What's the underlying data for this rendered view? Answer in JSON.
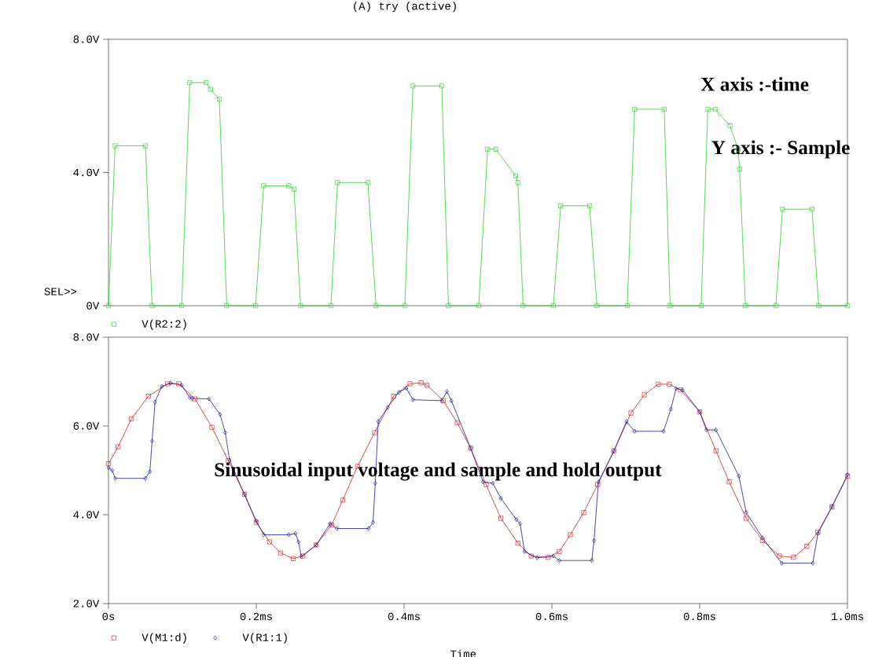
{
  "chart_data": [
    {
      "type": "line",
      "title": "(A) try (active)",
      "annotations": [
        "X axis :-time",
        "Y axis :- Sample",
        "SEL>>"
      ],
      "xlim": [
        0,
        1.0
      ],
      "ylim": [
        0,
        8
      ],
      "yticks": [
        {
          "value": 0,
          "label": "0V"
        },
        {
          "value": 4,
          "label": "4.0V"
        },
        {
          "value": 8,
          "label": "8.0V"
        }
      ],
      "tick_labels": "y",
      "legend": "bottom",
      "marker": "square",
      "series": [
        {
          "name": "V(R2:2)",
          "color": "#33cc33",
          "x": [
            0,
            0.009,
            0.05,
            0.059,
            0.099,
            0.11,
            0.132,
            0.138,
            0.15,
            0.16,
            0.199,
            0.21,
            0.244,
            0.251,
            0.26,
            0.301,
            0.31,
            0.351,
            0.362,
            0.401,
            0.412,
            0.451,
            0.46,
            0.501,
            0.513,
            0.524,
            0.551,
            0.554,
            0.561,
            0.602,
            0.612,
            0.651,
            0.661,
            0.702,
            0.712,
            0.752,
            0.76,
            0.802,
            0.811,
            0.821,
            0.841,
            0.852,
            0.854,
            0.862,
            0.903,
            0.912,
            0.952,
            0.961,
            1.0
          ],
          "values": [
            0,
            4.8,
            4.8,
            0,
            0,
            6.7,
            6.7,
            6.5,
            6.2,
            0,
            0,
            3.6,
            3.6,
            3.5,
            0,
            0,
            3.7,
            3.7,
            0,
            0,
            6.6,
            6.6,
            0,
            0,
            4.7,
            4.7,
            3.9,
            3.7,
            0,
            0,
            3.0,
            3.0,
            0,
            0,
            5.9,
            5.9,
            0,
            0,
            5.9,
            5.9,
            5.4,
            4.7,
            4.1,
            0,
            0,
            2.9,
            2.9,
            0,
            0
          ]
        }
      ]
    },
    {
      "type": "line",
      "xlabel": "Time",
      "annotations": [
        "Sinusoidal input voltage and sample and hold output"
      ],
      "xlim": [
        0,
        1.0
      ],
      "ylim": [
        2,
        8
      ],
      "xticks": [
        {
          "value": 0,
          "label": "0s"
        },
        {
          "value": 0.2,
          "label": "0.2ms"
        },
        {
          "value": 0.4,
          "label": "0.4ms"
        },
        {
          "value": 0.6,
          "label": "0.6ms"
        },
        {
          "value": 0.8,
          "label": "0.8ms"
        },
        {
          "value": 1.0,
          "label": "1.0ms"
        }
      ],
      "yticks": [
        {
          "value": 2,
          "label": "2.0V"
        },
        {
          "value": 4,
          "label": "4.0V"
        },
        {
          "value": 6,
          "label": "6.0V"
        },
        {
          "value": 8,
          "label": "8.0V"
        }
      ],
      "legend": "bottom",
      "marker": "square",
      "series": [
        {
          "name": "V(M1:d)",
          "color": "#cc2222",
          "x": [
            0,
            0.013,
            0.031,
            0.054,
            0.08,
            0.095,
            0.117,
            0.14,
            0.162,
            0.184,
            0.2,
            0.218,
            0.233,
            0.25,
            0.263,
            0.281,
            0.302,
            0.317,
            0.337,
            0.36,
            0.386,
            0.408,
            0.423,
            0.431,
            0.453,
            0.472,
            0.49,
            0.511,
            0.531,
            0.554,
            0.572,
            0.595,
            0.61,
            0.625,
            0.643,
            0.662,
            0.684,
            0.707,
            0.725,
            0.744,
            0.759,
            0.774,
            0.8,
            0.822,
            0.84,
            0.863,
            0.885,
            0.908,
            0.927,
            0.945,
            0.96,
            0.979,
            1.0
          ],
          "values": [
            5.15,
            5.53,
            6.16,
            6.67,
            6.95,
            6.95,
            6.61,
            5.97,
            5.22,
            4.46,
            3.83,
            3.39,
            3.14,
            3.01,
            3.07,
            3.32,
            3.77,
            4.33,
            5.09,
            5.85,
            6.67,
            6.95,
            6.97,
            6.92,
            6.57,
            6.07,
            5.5,
            4.68,
            3.92,
            3.36,
            3.07,
            3.04,
            3.17,
            3.55,
            4.05,
            4.68,
            5.44,
            6.29,
            6.7,
            6.94,
            6.94,
            6.81,
            6.32,
            5.44,
            4.74,
            3.92,
            3.42,
            3.07,
            3.04,
            3.29,
            3.61,
            4.18,
            4.87
          ]
        },
        {
          "name": "V(R1:1)",
          "color": "#1a1a99",
          "marker": "diamond",
          "x": [
            0,
            0.005,
            0.009,
            0.05,
            0.056,
            0.059,
            0.063,
            0.072,
            0.084,
            0.099,
            0.11,
            0.113,
            0.136,
            0.151,
            0.158,
            0.164,
            0.184,
            0.2,
            0.21,
            0.244,
            0.253,
            0.257,
            0.261,
            0.281,
            0.3,
            0.309,
            0.352,
            0.358,
            0.361,
            0.365,
            0.378,
            0.393,
            0.403,
            0.412,
            0.451,
            0.458,
            0.464,
            0.49,
            0.507,
            0.52,
            0.531,
            0.552,
            0.557,
            0.563,
            0.58,
            0.602,
            0.61,
            0.654,
            0.657,
            0.663,
            0.684,
            0.701,
            0.712,
            0.751,
            0.761,
            0.768,
            0.777,
            0.8,
            0.809,
            0.822,
            0.853,
            0.863,
            0.885,
            0.911,
            0.953,
            0.96,
            0.979,
            1.0
          ],
          "values": [
            5.06,
            5.0,
            4.82,
            4.82,
            4.97,
            5.66,
            6.54,
            6.89,
            6.97,
            6.92,
            6.64,
            6.62,
            6.61,
            6.26,
            5.85,
            5.22,
            4.46,
            3.86,
            3.55,
            3.55,
            3.58,
            3.39,
            3.06,
            3.32,
            3.8,
            3.69,
            3.69,
            3.83,
            4.71,
            6.1,
            6.42,
            6.76,
            6.85,
            6.59,
            6.57,
            6.78,
            6.57,
            5.5,
            4.74,
            4.71,
            4.37,
            3.89,
            3.8,
            3.17,
            3.03,
            3.07,
            2.97,
            2.97,
            3.42,
            4.74,
            5.44,
            6.1,
            5.88,
            5.88,
            6.38,
            6.84,
            6.81,
            6.32,
            5.91,
            5.91,
            4.87,
            4.05,
            3.48,
            2.91,
            2.91,
            3.58,
            4.18,
            4.9
          ]
        }
      ]
    }
  ]
}
